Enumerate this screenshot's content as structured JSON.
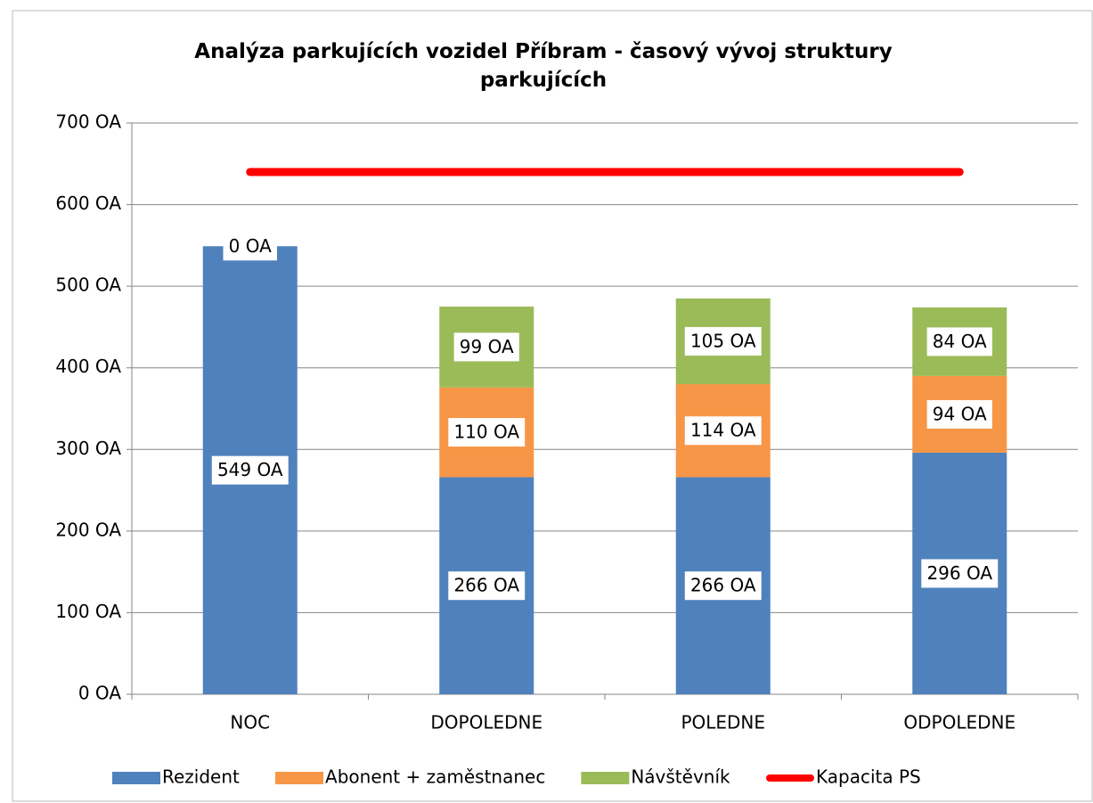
{
  "chart_data": {
    "type": "bar",
    "stacked": true,
    "title": "Analýza parkujících vozidel Příbram - časový vývoj struktury parkujících",
    "categories": [
      "NOC",
      "DOPOLEDNE",
      "POLEDNE",
      "ODPOLEDNE"
    ],
    "series": [
      {
        "name": "Rezident",
        "color": "#4f81bd",
        "values": [
          549,
          266,
          266,
          296
        ],
        "value_labels": [
          "549 OA",
          "266 OA",
          "266 OA",
          "296 OA"
        ]
      },
      {
        "name": "Abonent + zaměstnanec",
        "color": "#f79646",
        "values": [
          0,
          110,
          114,
          94
        ],
        "value_labels": [
          "0 OA",
          "110 OA",
          "114 OA",
          "94 OA"
        ]
      },
      {
        "name": "Návštěvník",
        "color": "#9bbb59",
        "values": [
          null,
          99,
          105,
          84
        ],
        "value_labels": [
          null,
          "99 OA",
          "105 OA",
          "84 OA"
        ]
      },
      {
        "name": "Kapacita PS",
        "color": "#ff0000",
        "type": "line",
        "values": [
          640,
          640,
          640,
          640
        ]
      }
    ],
    "ylim": [
      0,
      700
    ],
    "yticks": [
      {
        "value": 0,
        "label": "0 OA"
      },
      {
        "value": 100,
        "label": "100 OA"
      },
      {
        "value": 200,
        "label": "200 OA"
      },
      {
        "value": 300,
        "label": "300 OA"
      },
      {
        "value": 400,
        "label": "400 OA"
      },
      {
        "value": 500,
        "label": "500 OA"
      },
      {
        "value": 600,
        "label": "600 OA"
      },
      {
        "value": 700,
        "label": "700 OA"
      }
    ],
    "grid": true,
    "legend": "bottom"
  }
}
